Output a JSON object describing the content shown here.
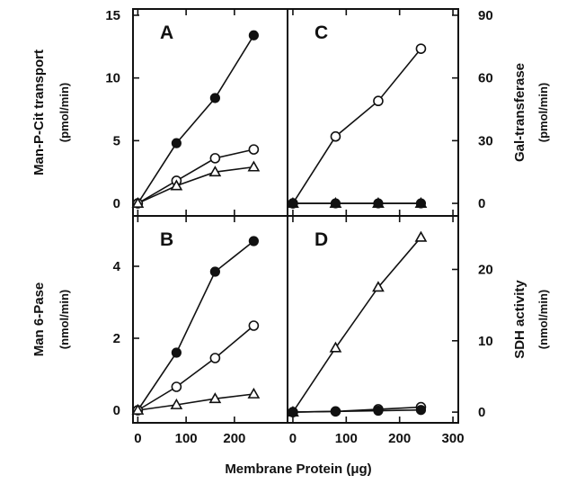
{
  "figure": {
    "xlabel": "Membrane Protein (μg)"
  },
  "chart_data": [
    {
      "id": "A",
      "type": "line",
      "panel_label": "A",
      "ylabel": "Man-P-Cit transport",
      "yunit": "(pmol/min)",
      "xlim": [
        -10,
        310
      ],
      "ylim": [
        -1,
        15.5
      ],
      "xticks": [
        0,
        100,
        200
      ],
      "xticks_labeled": false,
      "yticks": [
        0,
        5,
        10,
        15
      ],
      "yaxis_side": "left",
      "series": [
        {
          "marker": "filled-circle",
          "x": [
            0,
            80,
            160,
            240
          ],
          "y": [
            0,
            4.8,
            8.4,
            13.4
          ]
        },
        {
          "marker": "open-circle",
          "x": [
            0,
            80,
            160,
            240
          ],
          "y": [
            0,
            1.8,
            3.6,
            4.3
          ]
        },
        {
          "marker": "open-triangle",
          "x": [
            0,
            80,
            160,
            240
          ],
          "y": [
            0,
            1.4,
            2.5,
            2.9
          ]
        }
      ]
    },
    {
      "id": "C",
      "type": "line",
      "panel_label": "C",
      "ylabel": "Gal-transferase",
      "yunit": "(pmol/min)",
      "xlim": [
        -10,
        310
      ],
      "ylim": [
        -6,
        93
      ],
      "xticks": [
        0,
        100,
        200,
        300
      ],
      "xticks_labeled": false,
      "yticks": [
        0,
        30,
        60,
        90
      ],
      "yaxis_side": "right",
      "series": [
        {
          "marker": "open-circle",
          "x": [
            0,
            80,
            160,
            240
          ],
          "y": [
            0,
            32,
            49,
            74
          ]
        },
        {
          "marker": "open-triangle",
          "x": [
            0,
            80,
            160,
            240
          ],
          "y": [
            0,
            0,
            0,
            0
          ]
        },
        {
          "marker": "filled-circle",
          "x": [
            0,
            80,
            160,
            240
          ],
          "y": [
            0,
            0,
            0,
            0
          ]
        }
      ]
    },
    {
      "id": "B",
      "type": "line",
      "panel_label": "B",
      "ylabel": "Man 6-Pase",
      "yunit": "(nmol/min)",
      "xlim": [
        -10,
        310
      ],
      "ylim": [
        -0.35,
        5.4
      ],
      "xticks": [
        0,
        100,
        200
      ],
      "xticks_labeled": true,
      "yticks": [
        0,
        2,
        4
      ],
      "yaxis_side": "left",
      "series": [
        {
          "marker": "filled-circle",
          "x": [
            0,
            80,
            160,
            240
          ],
          "y": [
            0,
            1.6,
            3.85,
            4.7
          ]
        },
        {
          "marker": "open-circle",
          "x": [
            0,
            80,
            160,
            240
          ],
          "y": [
            0,
            0.65,
            1.45,
            2.35
          ]
        },
        {
          "marker": "open-triangle",
          "x": [
            0,
            80,
            160,
            240
          ],
          "y": [
            0,
            0.15,
            0.32,
            0.45
          ]
        }
      ]
    },
    {
      "id": "D",
      "type": "line",
      "panel_label": "D",
      "ylabel": "SDH activity",
      "yunit": "(nmol/min)",
      "xlim": [
        -10,
        310
      ],
      "ylim": [
        -1.5,
        27.5
      ],
      "xticks": [
        0,
        100,
        200,
        300
      ],
      "xticks_labeled": true,
      "yticks": [
        0,
        10,
        20
      ],
      "yaxis_side": "right",
      "series": [
        {
          "marker": "open-triangle",
          "x": [
            0,
            80,
            160,
            240
          ],
          "y": [
            0,
            9,
            17.5,
            24.5
          ]
        },
        {
          "marker": "open-circle",
          "x": [
            0,
            80,
            160,
            240
          ],
          "y": [
            0,
            0.1,
            0.4,
            0.7
          ]
        },
        {
          "marker": "filled-circle",
          "x": [
            0,
            80,
            160,
            240
          ],
          "y": [
            0,
            0.1,
            0.2,
            0.3
          ]
        }
      ]
    }
  ]
}
